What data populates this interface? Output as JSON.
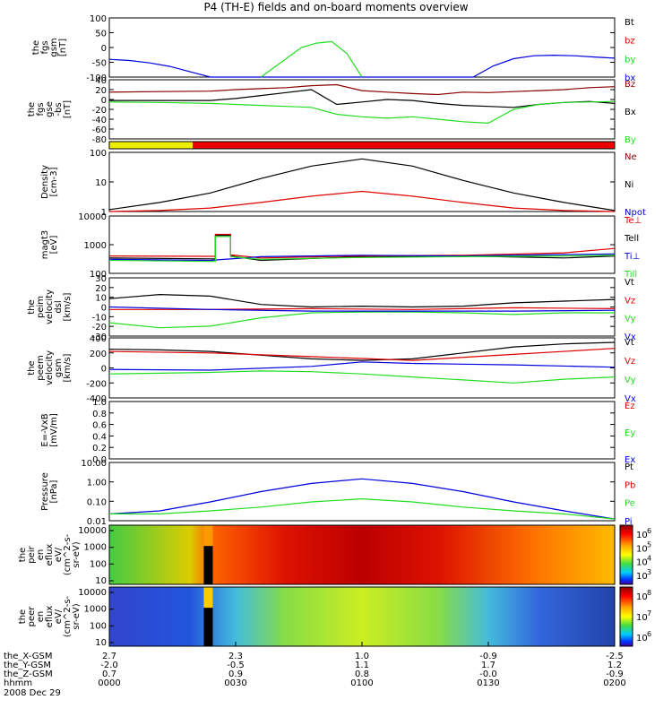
{
  "title": "P4 (TH-E) fields and on-board moments overview",
  "date": "2008 Dec 29",
  "colors": {
    "black": "#000000",
    "red": "#dd0000",
    "green": "#22dd22",
    "blue": "#0000dd",
    "yellow": "#eeee00",
    "darkred": "#880000"
  },
  "chart_data": [
    {
      "type": "line",
      "ylabel_lines": [
        "the",
        "fgs",
        "gsm",
        "[nT]"
      ],
      "ylim": [
        -100,
        100
      ],
      "yticks": [
        "100",
        "50",
        "0",
        "-50",
        "-100"
      ],
      "legend": [
        "Bt",
        "bz",
        "by",
        "bx"
      ],
      "series": [
        {
          "name": "bx",
          "color": "#0000dd",
          "x": [
            0,
            0.04,
            0.08,
            0.12,
            0.16,
            0.2,
            0.72,
            0.76,
            0.8,
            0.84,
            0.88,
            0.92,
            0.96,
            1.0
          ],
          "y": [
            -40,
            -44,
            -52,
            -64,
            -82,
            -100,
            -100,
            -62,
            -38,
            -28,
            -26,
            -28,
            -32,
            -36
          ]
        },
        {
          "name": "by",
          "color": "#22dd22",
          "x": [
            0.3,
            0.34,
            0.38,
            0.41,
            0.44,
            0.47,
            0.5
          ],
          "y": [
            -100,
            -50,
            0,
            15,
            20,
            -20,
            -100
          ]
        }
      ]
    },
    {
      "type": "line",
      "ylabel_lines": [
        "the",
        "fgs",
        "gse",
        "-bs",
        "[nT]"
      ],
      "ylim": [
        -80,
        40
      ],
      "yticks": [
        "40",
        "20",
        "0",
        "-20",
        "-40",
        "-60",
        "-80"
      ],
      "legend": [
        "Bz",
        "Bx",
        "By"
      ],
      "series": [
        {
          "name": "Bz",
          "color": "#880000",
          "x": [
            0,
            0.1,
            0.2,
            0.25,
            0.3,
            0.35,
            0.4,
            0.45,
            0.5,
            0.55,
            0.6,
            0.65,
            0.7,
            0.75,
            0.8,
            0.85,
            0.9,
            0.95,
            1.0
          ],
          "y": [
            15,
            16,
            17,
            20,
            22,
            24,
            28,
            30,
            18,
            15,
            12,
            10,
            15,
            14,
            16,
            18,
            20,
            24,
            26
          ]
        },
        {
          "name": "Bx",
          "color": "#000000",
          "x": [
            0,
            0.1,
            0.2,
            0.25,
            0.3,
            0.35,
            0.4,
            0.45,
            0.5,
            0.55,
            0.6,
            0.65,
            0.7,
            0.75,
            0.8,
            0.85,
            0.9,
            0.95,
            1.0
          ],
          "y": [
            -2,
            -2,
            -2,
            2,
            8,
            14,
            20,
            -10,
            -5,
            0,
            -2,
            -8,
            -12,
            -14,
            -16,
            -10,
            -6,
            -4,
            -8
          ]
        },
        {
          "name": "By",
          "color": "#22dd22",
          "x": [
            0,
            0.1,
            0.2,
            0.25,
            0.3,
            0.35,
            0.4,
            0.45,
            0.5,
            0.55,
            0.6,
            0.65,
            0.7,
            0.75,
            0.8,
            0.85,
            0.9,
            0.95,
            1.0
          ],
          "y": [
            -5,
            -6,
            -8,
            -10,
            -12,
            -14,
            -16,
            -30,
            -35,
            -38,
            -35,
            -40,
            -45,
            -48,
            -20,
            -10,
            -6,
            -5,
            -4
          ]
        }
      ]
    },
    {
      "type": "bar",
      "name": "mode-bar",
      "segments": [
        {
          "start": 0,
          "end": 0.165,
          "color": "#eeee00"
        },
        {
          "start": 0.165,
          "end": 1,
          "color": "#ee0000"
        }
      ]
    },
    {
      "type": "line",
      "ylabel_lines": [
        "Density",
        "[cm-3]"
      ],
      "yscale": "log",
      "ylim": [
        0.5,
        150
      ],
      "yticks": [
        "100",
        "10",
        "1"
      ],
      "legend": [
        "Ne",
        "Ni",
        "Npot"
      ],
      "series": [
        {
          "name": "Ni",
          "color": "#000000",
          "x": [
            0,
            0.1,
            0.2,
            0.3,
            0.4,
            0.5,
            0.6,
            0.7,
            0.8,
            0.9,
            1.0
          ],
          "y": [
            0.6,
            1.2,
            3,
            12,
            40,
            80,
            40,
            10,
            3,
            1.2,
            0.55
          ]
        },
        {
          "name": "Ne",
          "color": "#dd0000",
          "x": [
            0,
            0.1,
            0.2,
            0.3,
            0.4,
            0.5,
            0.6,
            0.7,
            0.8,
            0.9,
            1.0
          ],
          "y": [
            0.5,
            0.55,
            0.7,
            1.2,
            2.2,
            3.5,
            2.2,
            1.2,
            0.7,
            0.55,
            0.5
          ]
        }
      ]
    },
    {
      "type": "line",
      "ylabel_lines": [
        "magt3",
        "[eV]"
      ],
      "yscale": "log",
      "ylim": [
        60,
        12000
      ],
      "yticks": [
        "10000",
        "1000",
        "100"
      ],
      "legend": [
        "Te⊥",
        "Tell",
        "Ti⊥",
        "Till"
      ],
      "series": [
        {
          "name": "Tell",
          "color": "#000000",
          "x": [
            0,
            0.2,
            0.21,
            0.21,
            0.24,
            0.24,
            0.3,
            0.5,
            0.7,
            0.9,
            1.0
          ],
          "y": [
            250,
            230,
            230,
            2000,
            2000,
            300,
            200,
            280,
            300,
            250,
            300
          ]
        },
        {
          "name": "Te⊥",
          "color": "#dd0000",
          "x": [
            0,
            0.2,
            0.21,
            0.21,
            0.24,
            0.24,
            0.3,
            0.5,
            0.7,
            0.9,
            1.0
          ],
          "y": [
            300,
            290,
            290,
            2200,
            2200,
            330,
            250,
            300,
            320,
            400,
            600
          ]
        },
        {
          "name": "Ti⊥",
          "color": "#0000dd",
          "x": [
            0,
            0.2,
            0.3,
            0.5,
            0.7,
            0.9,
            1.0
          ],
          "y": [
            220,
            200,
            280,
            320,
            300,
            340,
            360
          ]
        },
        {
          "name": "Till",
          "color": "#22dd22",
          "x": [
            0,
            0.2,
            0.21,
            0.21,
            0.24,
            0.24,
            0.3,
            0.5,
            0.7,
            0.9,
            1.0
          ],
          "y": [
            200,
            180,
            180,
            1800,
            1800,
            280,
            220,
            260,
            280,
            300,
            320
          ]
        }
      ]
    },
    {
      "type": "line",
      "ylabel_lines": [
        "the",
        "peim",
        "velocity",
        "dsl",
        "[km/s]"
      ],
      "ylim": [
        -30,
        40
      ],
      "yticks": [
        "30",
        "20",
        "10",
        "0",
        "-10",
        "-20",
        "-30"
      ],
      "legend": [
        "Vt",
        "Vz",
        "Vy",
        "Vx"
      ],
      "series": [
        {
          "name": "Vt",
          "color": "#000000",
          "x": [
            0,
            0.1,
            0.2,
            0.3,
            0.4,
            0.5,
            0.6,
            0.7,
            0.8,
            0.9,
            1.0
          ],
          "y": [
            15,
            20,
            18,
            8,
            5,
            6,
            5,
            6,
            10,
            12,
            14
          ]
        },
        {
          "name": "Vz",
          "color": "#dd0000",
          "x": [
            0,
            0.2,
            0.4,
            0.6,
            0.8,
            1.0
          ],
          "y": [
            2,
            2,
            3,
            2,
            4,
            3
          ]
        },
        {
          "name": "Vy",
          "color": "#22dd22",
          "x": [
            0,
            0.1,
            0.2,
            0.3,
            0.4,
            0.5,
            0.6,
            0.7,
            0.8,
            0.9,
            1.0
          ],
          "y": [
            -14,
            -20,
            -18,
            -8,
            -2,
            -1,
            -1,
            -2,
            -4,
            -2,
            -2
          ]
        },
        {
          "name": "Vx",
          "color": "#0000dd",
          "x": [
            0,
            0.2,
            0.4,
            0.6,
            0.8,
            1.0
          ],
          "y": [
            5,
            2,
            0,
            0,
            0,
            1
          ]
        }
      ]
    },
    {
      "type": "line",
      "ylabel_lines": [
        "the",
        "peem",
        "velocity",
        "gsm",
        "[km/s]"
      ],
      "ylim": [
        -400,
        400
      ],
      "yticks": [
        "400",
        "200",
        "0",
        "-200",
        "-400"
      ],
      "legend": [
        "Vt",
        "Vz",
        "Vy",
        "Vx"
      ],
      "series": [
        {
          "name": "Vt",
          "color": "#000000",
          "x": [
            0,
            0.1,
            0.2,
            0.3,
            0.4,
            0.5,
            0.6,
            0.7,
            0.8,
            0.9,
            1.0
          ],
          "y": [
            250,
            240,
            220,
            170,
            120,
            100,
            120,
            200,
            280,
            320,
            340
          ]
        },
        {
          "name": "Vz",
          "color": "#dd0000",
          "x": [
            0,
            0.2,
            0.4,
            0.6,
            0.8,
            1.0
          ],
          "y": [
            220,
            200,
            150,
            100,
            180,
            260
          ]
        },
        {
          "name": "Vy",
          "color": "#22dd22",
          "x": [
            0,
            0.1,
            0.2,
            0.3,
            0.4,
            0.5,
            0.6,
            0.7,
            0.8,
            0.9,
            1.0
          ],
          "y": [
            -80,
            -70,
            -60,
            -40,
            -50,
            -80,
            -120,
            -160,
            -200,
            -150,
            -120
          ]
        },
        {
          "name": "Vx",
          "color": "#0000dd",
          "x": [
            0,
            0.2,
            0.4,
            0.5,
            0.6,
            0.8,
            1.0
          ],
          "y": [
            -20,
            -30,
            20,
            80,
            60,
            40,
            10
          ]
        }
      ]
    },
    {
      "type": "line",
      "ylabel_lines": [
        "E=-VxB",
        "[mV/m]"
      ],
      "ylim": [
        0,
        1
      ],
      "yticks": [
        "1.0",
        "0.8",
        "0.6",
        "0.4",
        "0.2",
        "0.0"
      ],
      "legend": [
        "Ez",
        "Ey",
        "Ex"
      ],
      "series": []
    },
    {
      "type": "line",
      "ylabel_lines": [
        "Pressure",
        "[nPa]"
      ],
      "yscale": "log",
      "ylim": [
        0.008,
        20
      ],
      "yticks": [
        "10.00",
        "1.00",
        "0.10",
        "0.01"
      ],
      "legend": [
        "Pt",
        "Pb",
        "Pe",
        "Pi"
      ],
      "series": [
        {
          "name": "Pi",
          "color": "#0000dd",
          "x": [
            0,
            0.1,
            0.2,
            0.3,
            0.4,
            0.5,
            0.6,
            0.7,
            0.8,
            0.9,
            1.0
          ],
          "y": [
            0.02,
            0.03,
            0.1,
            0.4,
            1.2,
            2.2,
            1.2,
            0.4,
            0.1,
            0.03,
            0.01
          ]
        },
        {
          "name": "Pe",
          "color": "#22dd22",
          "x": [
            0,
            0.1,
            0.2,
            0.3,
            0.4,
            0.5,
            0.6,
            0.7,
            0.8,
            0.9,
            1.0
          ],
          "y": [
            0.02,
            0.02,
            0.03,
            0.05,
            0.1,
            0.15,
            0.1,
            0.05,
            0.03,
            0.02,
            0.01
          ]
        }
      ]
    },
    {
      "type": "heatmap",
      "name": "ion-spectrogram",
      "ylabel_lines": [
        "the",
        "peir",
        "en",
        "eflux",
        "eV/",
        "(cm^2-s-",
        "sr-eV)"
      ],
      "yticks": [
        "10000",
        "1000",
        "100",
        "10"
      ],
      "colorbar": {
        "labels": [
          "10",
          "10",
          "10",
          "10"
        ],
        "exponents": [
          "6",
          "5",
          "4",
          "3"
        ]
      }
    },
    {
      "type": "heatmap",
      "name": "electron-spectrogram",
      "ylabel_lines": [
        "the",
        "peer",
        "en",
        "eflux",
        "eV/",
        "(cm^2-s-",
        "sr-eV)"
      ],
      "yticks": [
        "10000",
        "1000",
        "100",
        "10"
      ],
      "colorbar": {
        "labels": [
          "10",
          "10",
          "10"
        ],
        "exponents": [
          "8",
          "7",
          "6"
        ]
      }
    }
  ],
  "xaxis": {
    "row_labels": [
      "the_X-GSM",
      "the_Y-GSM",
      "the_Z-GSM",
      "hhmm"
    ],
    "columns": [
      [
        "2.7",
        "-2.0",
        "0.7",
        "0000"
      ],
      [
        "2.3",
        "-0.5",
        "0.9",
        "0030"
      ],
      [
        "1.0",
        "1.1",
        "0.8",
        "0100"
      ],
      [
        "-0.9",
        "1.7",
        "-0.0",
        "0130"
      ],
      [
        "-2.5",
        "1.2",
        "-0.9",
        "0200"
      ]
    ]
  }
}
